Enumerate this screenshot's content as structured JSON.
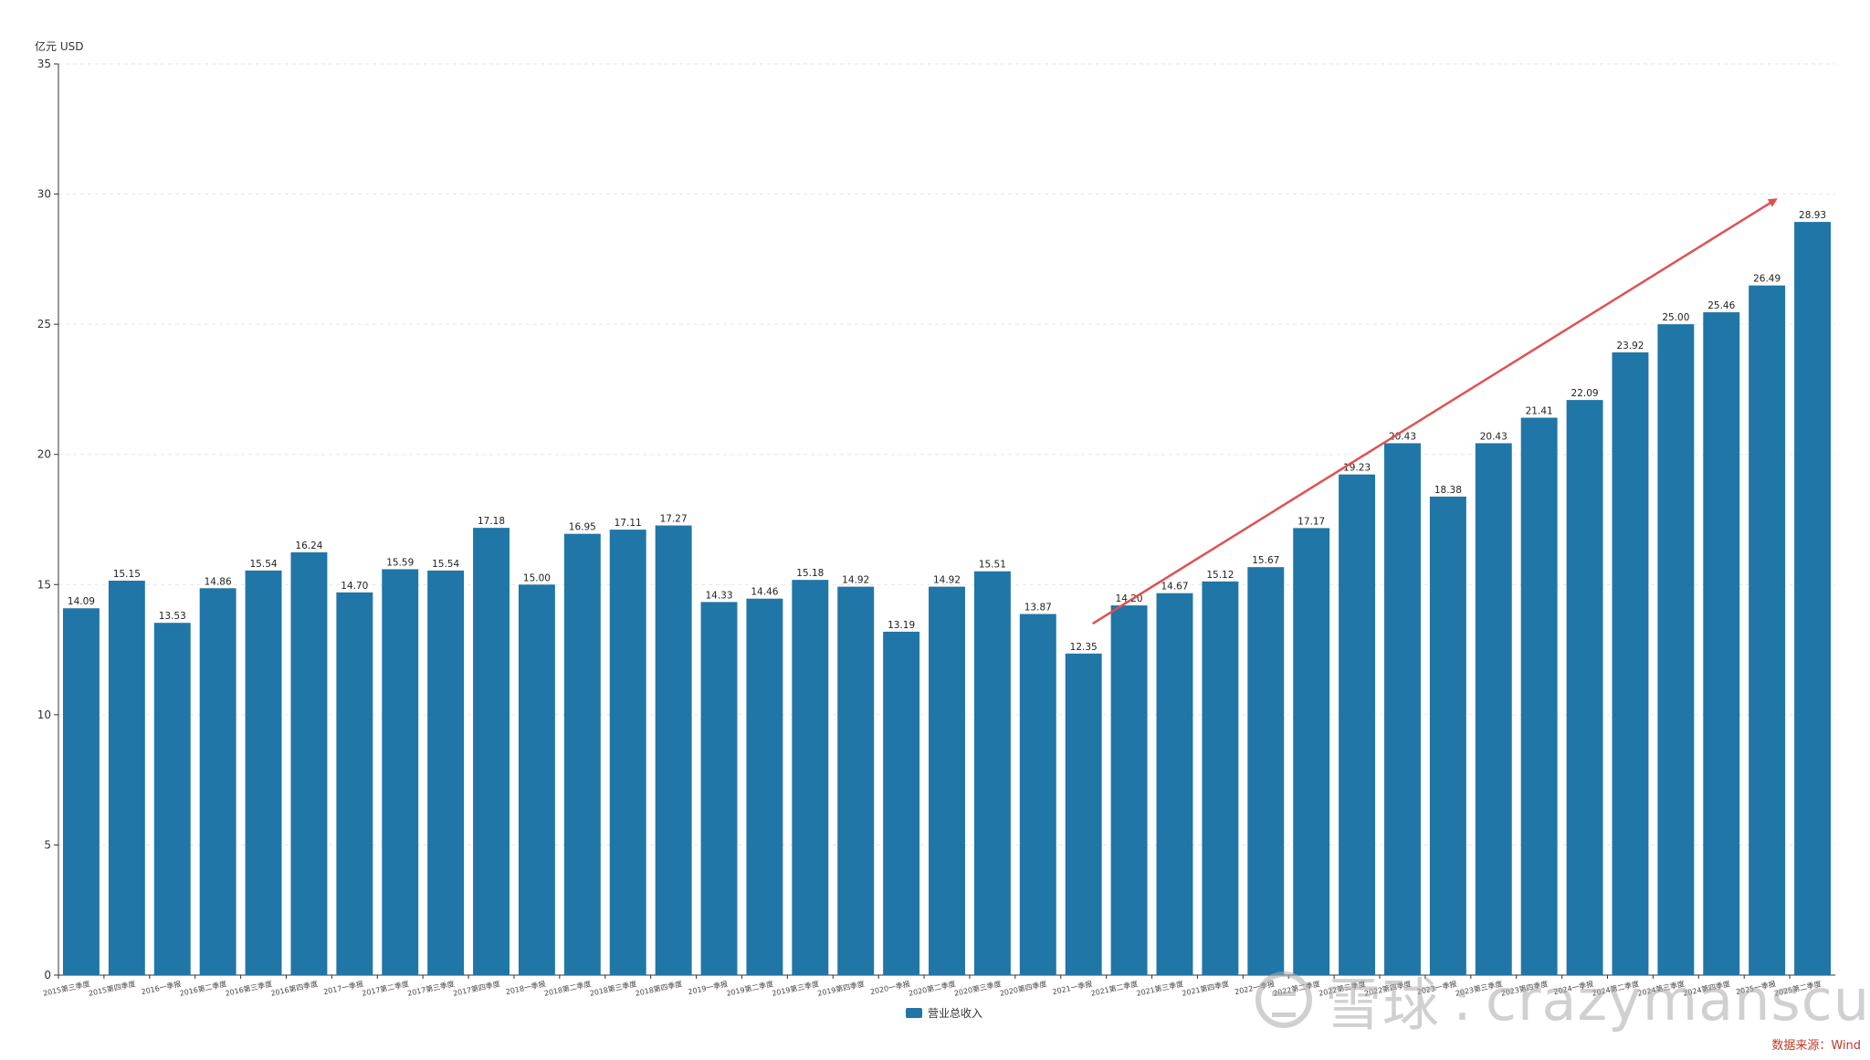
{
  "colors": {
    "bar": "#2076a6",
    "arrow": "#e05050",
    "grid": "#e6e6e6",
    "source": "#c0392b"
  },
  "chart_data": {
    "type": "bar",
    "unit_label": "亿元  USD",
    "categories": [
      "2015第三季度",
      "2015第四季度",
      "2016一季报",
      "2016第二季度",
      "2016第三季度",
      "2016第四季度",
      "2017一季报",
      "2017第二季度",
      "2017第三季度",
      "2017第四季度",
      "2018一季报",
      "2018第二季度",
      "2018第三季度",
      "2018第四季度",
      "2019一季报",
      "2019第二季度",
      "2019第三季度",
      "2019第四季度",
      "2020一季报",
      "2020第二季度",
      "2020第三季度",
      "2020第四季度",
      "2021一季报",
      "2021第二季度",
      "2021第三季度",
      "2021第四季度",
      "2022一季报",
      "2022第二季度",
      "2022第三季度",
      "2022第四季度",
      "2023一季报",
      "2023第三季度",
      "2023第四季度",
      "2024一季报",
      "2024第二季度",
      "2024第三季度",
      "2024第四季度",
      "2025一季报",
      "2025第二季度"
    ],
    "series": [
      {
        "name": "营业总收入",
        "values": [
          14.09,
          15.15,
          13.53,
          14.86,
          15.54,
          16.24,
          14.7,
          15.59,
          15.54,
          17.18,
          15.0,
          16.95,
          17.11,
          17.27,
          14.33,
          14.46,
          15.18,
          14.92,
          13.19,
          14.92,
          15.51,
          13.87,
          12.35,
          14.2,
          14.67,
          15.12,
          15.67,
          17.17,
          19.23,
          20.43,
          18.38,
          20.43,
          21.41,
          22.09,
          23.92,
          25.0,
          25.46,
          26.49,
          28.93
        ]
      }
    ],
    "value_labels": [
      "14.09",
      "15.15",
      "13.53",
      "14.86",
      "15.54",
      "16.24",
      "14.70",
      "15.59",
      "15.54",
      "17.18",
      "15.00",
      "16.95",
      "17.11",
      "17.27",
      "14.33",
      "14.46",
      "15.18",
      "14.92",
      "13.19",
      "14.92",
      "15.51",
      "13.87",
      "12.35",
      "14.20",
      "14.67",
      "15.12",
      "15.67",
      "17.17",
      "19.23",
      "20.43",
      "18.38",
      "20.43",
      "21.41",
      "22.09",
      "23.92",
      "25.00",
      "25.46",
      "26.49",
      "28.93"
    ],
    "y_ticks": [
      "0",
      "5",
      "10",
      "15",
      "20",
      "25",
      "30",
      "35"
    ],
    "ylim": [
      0,
      35
    ],
    "grid": true,
    "legend_position": "bottom-center",
    "trend_arrow": {
      "from_category_index": 23,
      "to_category_index": 38,
      "from_value": 13.5,
      "to_value": 29.8
    }
  },
  "legend": {
    "label": "营业总收入"
  },
  "source_text": "数据来源：Wind",
  "watermark": {
    "brand": "雪球",
    "separator": ":",
    "user": "crazymanscu"
  }
}
